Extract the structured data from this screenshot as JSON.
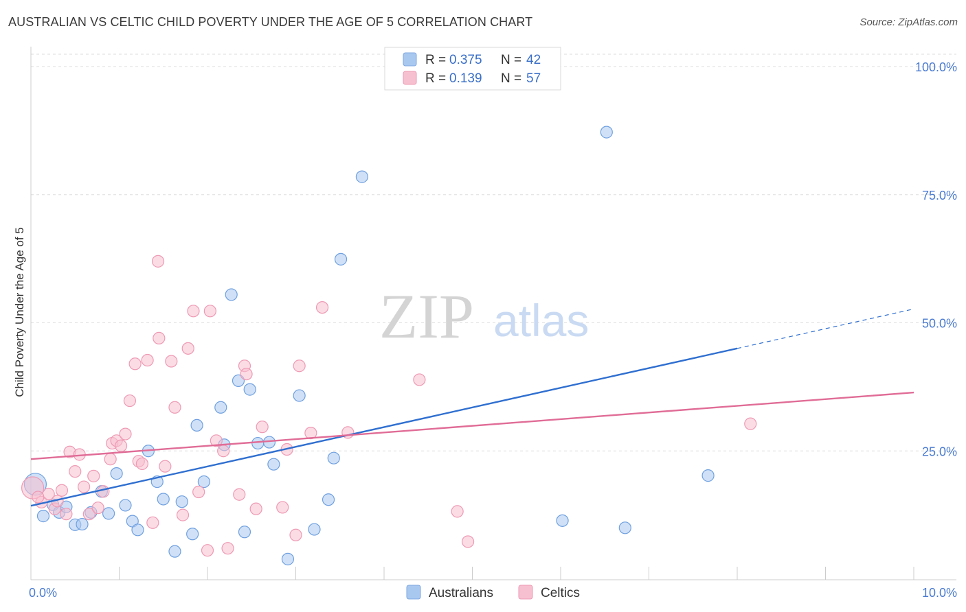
{
  "title": "AUSTRALIAN VS CELTIC CHILD POVERTY UNDER THE AGE OF 5 CORRELATION CHART",
  "source": "Source: ZipAtlas.com",
  "watermark": {
    "zip": "ZIP",
    "atlas": "atlas"
  },
  "legend_top": [
    {
      "r_label": "R =",
      "r_value": "0.375",
      "n_label": "N =",
      "n_value": "42",
      "color": "#a9c8f0",
      "stroke": "#7fa8e0"
    },
    {
      "r_label": "R =",
      "r_value": "0.139",
      "n_label": "N =",
      "n_value": "57",
      "color": "#f7c0d0",
      "stroke": "#ee9ab4"
    }
  ],
  "legend_bottom": [
    {
      "label": "Australians",
      "color": "#a9c8f0",
      "stroke": "#7fa8e0"
    },
    {
      "label": "Celtics",
      "color": "#f7c0d0",
      "stroke": "#ee9ab4"
    }
  ],
  "chart_data": {
    "type": "scatter",
    "title": "AUSTRALIAN VS CELTIC CHILD POVERTY UNDER THE AGE OF 5 CORRELATION CHART",
    "xlabel": "",
    "ylabel": "Child Poverty Under the Age of 5",
    "xlim": [
      0,
      10
    ],
    "ylim": [
      0,
      100
    ],
    "x_tick_labels": [
      "0.0%",
      "10.0%"
    ],
    "y_ticks": [
      25,
      50,
      75,
      100
    ],
    "y_tick_labels": [
      "25.0%",
      "50.0%",
      "75.0%",
      "100.0%"
    ],
    "grid": true,
    "legend_position": "top-center",
    "series": [
      {
        "name": "Australians",
        "color": "#6fa0e0",
        "fill": "#a9c8f0",
        "line_color": "#2f6fd0",
        "trend": {
          "x0": 0,
          "y0": 14.3,
          "x1": 8.0,
          "y1": 45.0,
          "dash_to_x": 10.0,
          "dash_to_y": 52.7
        },
        "points": [
          {
            "x": 0.05,
            "y": 18.5,
            "big": true
          },
          {
            "x": 0.14,
            "y": 12.3
          },
          {
            "x": 0.25,
            "y": 14.5
          },
          {
            "x": 0.32,
            "y": 13.0
          },
          {
            "x": 0.4,
            "y": 14.1
          },
          {
            "x": 0.5,
            "y": 10.6
          },
          {
            "x": 0.58,
            "y": 10.7
          },
          {
            "x": 0.68,
            "y": 13.0
          },
          {
            "x": 0.8,
            "y": 17.1
          },
          {
            "x": 0.88,
            "y": 12.8
          },
          {
            "x": 0.97,
            "y": 20.6
          },
          {
            "x": 1.07,
            "y": 14.4
          },
          {
            "x": 1.15,
            "y": 11.3
          },
          {
            "x": 1.21,
            "y": 9.6
          },
          {
            "x": 1.33,
            "y": 25.0
          },
          {
            "x": 1.43,
            "y": 19.0
          },
          {
            "x": 1.5,
            "y": 15.6
          },
          {
            "x": 1.63,
            "y": 5.4
          },
          {
            "x": 1.71,
            "y": 15.1
          },
          {
            "x": 1.83,
            "y": 8.8
          },
          {
            "x": 1.88,
            "y": 30.0
          },
          {
            "x": 1.96,
            "y": 19.0
          },
          {
            "x": 2.15,
            "y": 33.5
          },
          {
            "x": 2.19,
            "y": 26.2
          },
          {
            "x": 2.27,
            "y": 55.5
          },
          {
            "x": 2.35,
            "y": 38.7
          },
          {
            "x": 2.42,
            "y": 9.2
          },
          {
            "x": 2.48,
            "y": 37.0
          },
          {
            "x": 2.57,
            "y": 26.5
          },
          {
            "x": 2.7,
            "y": 26.7
          },
          {
            "x": 2.75,
            "y": 22.4
          },
          {
            "x": 2.91,
            "y": 3.9
          },
          {
            "x": 3.04,
            "y": 35.8
          },
          {
            "x": 3.21,
            "y": 9.7
          },
          {
            "x": 3.37,
            "y": 15.5
          },
          {
            "x": 3.43,
            "y": 23.6
          },
          {
            "x": 3.51,
            "y": 62.4
          },
          {
            "x": 3.75,
            "y": 78.5
          },
          {
            "x": 6.02,
            "y": 11.4
          },
          {
            "x": 6.52,
            "y": 87.2
          },
          {
            "x": 6.73,
            "y": 10.0
          },
          {
            "x": 7.67,
            "y": 20.2
          }
        ]
      },
      {
        "name": "Celtics",
        "color": "#ee9ab4",
        "fill": "#f7c0d0",
        "line_color": "#e06c96",
        "trend": {
          "x0": 0,
          "y0": 23.4,
          "x1": 10.0,
          "y1": 36.4
        },
        "points": [
          {
            "x": 0.02,
            "y": 17.8,
            "big": true
          },
          {
            "x": 0.12,
            "y": 15.0
          },
          {
            "x": 0.2,
            "y": 16.6
          },
          {
            "x": 0.27,
            "y": 13.7
          },
          {
            "x": 0.35,
            "y": 17.3
          },
          {
            "x": 0.4,
            "y": 12.7
          },
          {
            "x": 0.44,
            "y": 24.8
          },
          {
            "x": 0.5,
            "y": 21.0
          },
          {
            "x": 0.55,
            "y": 24.3
          },
          {
            "x": 0.6,
            "y": 18.0
          },
          {
            "x": 0.66,
            "y": 12.7
          },
          {
            "x": 0.71,
            "y": 20.1
          },
          {
            "x": 0.76,
            "y": 13.9
          },
          {
            "x": 0.82,
            "y": 17.1
          },
          {
            "x": 0.9,
            "y": 23.4
          },
          {
            "x": 0.92,
            "y": 26.5
          },
          {
            "x": 0.97,
            "y": 27.0
          },
          {
            "x": 1.02,
            "y": 26.0
          },
          {
            "x": 1.07,
            "y": 28.3
          },
          {
            "x": 1.12,
            "y": 34.8
          },
          {
            "x": 1.18,
            "y": 42.0
          },
          {
            "x": 1.22,
            "y": 23.0
          },
          {
            "x": 1.26,
            "y": 22.5
          },
          {
            "x": 1.32,
            "y": 42.7
          },
          {
            "x": 1.38,
            "y": 11.0
          },
          {
            "x": 1.44,
            "y": 62.0
          },
          {
            "x": 1.45,
            "y": 47.0
          },
          {
            "x": 1.52,
            "y": 22.0
          },
          {
            "x": 1.59,
            "y": 42.5
          },
          {
            "x": 1.63,
            "y": 33.5
          },
          {
            "x": 1.72,
            "y": 12.5
          },
          {
            "x": 1.78,
            "y": 45.0
          },
          {
            "x": 1.84,
            "y": 52.3
          },
          {
            "x": 1.9,
            "y": 17.0
          },
          {
            "x": 2.0,
            "y": 5.6
          },
          {
            "x": 2.03,
            "y": 52.3
          },
          {
            "x": 2.1,
            "y": 27.0
          },
          {
            "x": 2.18,
            "y": 25.0
          },
          {
            "x": 2.23,
            "y": 6.0
          },
          {
            "x": 2.36,
            "y": 16.5
          },
          {
            "x": 2.42,
            "y": 41.6
          },
          {
            "x": 2.44,
            "y": 40.0
          },
          {
            "x": 2.55,
            "y": 13.7
          },
          {
            "x": 2.62,
            "y": 29.7
          },
          {
            "x": 2.85,
            "y": 14.0
          },
          {
            "x": 2.9,
            "y": 25.3
          },
          {
            "x": 3.0,
            "y": 8.6
          },
          {
            "x": 3.04,
            "y": 41.6
          },
          {
            "x": 3.17,
            "y": 28.5
          },
          {
            "x": 3.3,
            "y": 53.0
          },
          {
            "x": 3.59,
            "y": 28.6
          },
          {
            "x": 4.4,
            "y": 38.9
          },
          {
            "x": 4.83,
            "y": 13.2
          },
          {
            "x": 4.95,
            "y": 7.3
          },
          {
            "x": 8.15,
            "y": 30.3
          },
          {
            "x": 0.08,
            "y": 16.0
          },
          {
            "x": 0.3,
            "y": 15.2
          }
        ]
      }
    ]
  }
}
